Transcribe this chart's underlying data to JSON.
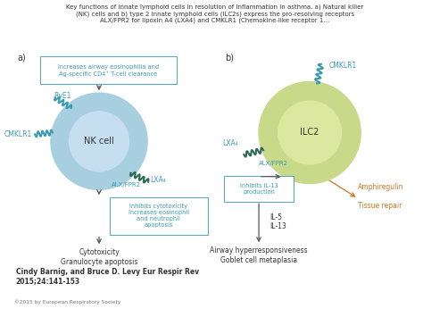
{
  "title_lines": [
    "Key functions of innate lymphoid cells in resolution of inflammation in asthma. a) Natural killer",
    "(NK) cells and b) type 2 innate lymphoid cells (ILC2s) express the pro-resolving receptors",
    "ALX/FPR2 for lipoxin A4 (LXA4) and CMKLR1 (Chemokine-like receptor 1..."
  ],
  "author_line1": "Cindy Barnig, and Bruce D. Levy Eur Respir Rev",
  "author_line2": "2015;24:141-153",
  "copyright": "©2015 by European Respiratory Society",
  "panel_a_label": "a)",
  "panel_b_label": "b)",
  "nk_cell_label": "NK cell",
  "ilc2_label": "ILC2",
  "left_box_text": "Increases airway eosinophilia and\nAg-specific CD4⁺ T-cell clearance",
  "bottom_left_box_text": "Inhibits cytotoxicity\nIncreases eosinophil\nand neutrophil\napoptosis",
  "bottom_right_box_text": "Inhibits IL-13\nproduction",
  "cytotoxicity_text": "Cytotoxicity\nGranulocyte apoptosis",
  "airway_text": "Airway hyperresponsiveness\nGoblet cell metaplasia",
  "il5_il13_text": "IL-5\nIL-13",
  "amphiregulin_text": "Amphiregulin",
  "tissue_repair_text": "Tissue repair",
  "rve1_label": "RvE1",
  "cmklr1_left_label": "CMKLR1",
  "alx_fpr2_left_label": "ALX/FPR2",
  "lxa4_left_label": "LXA₄",
  "cmklr1_right_label": "CMKLR1",
  "alx_fpr2_right_label": "ALX/FPR2",
  "lxa4_right_label": "LXA₄",
  "nk_outer_color": "#a8cfe0",
  "nk_inner_color": "#c5dff0",
  "ilc2_outer_color": "#c8d98a",
  "ilc2_inner_color": "#dce8a0",
  "box_border_color": "#5ba8b8",
  "ilc2_box_border": "#7aa830",
  "text_teal": "#3a9ab0",
  "text_green_dark": "#2a6a50",
  "text_dark": "#333333",
  "arrow_color": "#555555",
  "orange_color": "#c87820",
  "bg_color": "#ffffff"
}
